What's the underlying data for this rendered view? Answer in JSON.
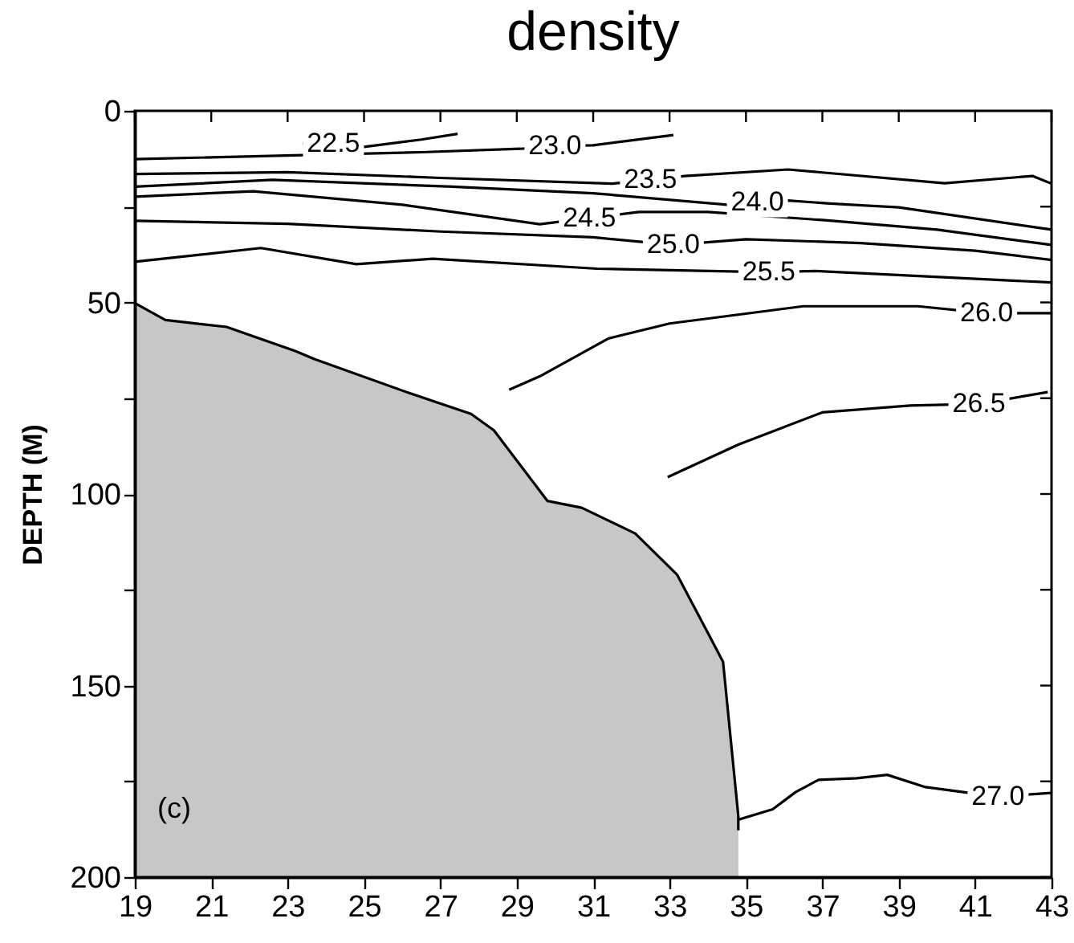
{
  "chart_data": {
    "type": "line",
    "title": "density",
    "ylabel": "DEPTH (M)",
    "xlim": [
      19,
      43
    ],
    "xticks": [
      19,
      21,
      23,
      25,
      27,
      29,
      31,
      33,
      35,
      37,
      39,
      41,
      43
    ],
    "ylim": [
      200,
      0
    ],
    "yticks": [
      0,
      {
        "value": 25,
        "label": null
      },
      50,
      {
        "value": 75,
        "label": null
      },
      100,
      {
        "value": 125,
        "label": null
      },
      150,
      {
        "value": 175,
        "label": null
      },
      200
    ],
    "grid": false,
    "marker": "none",
    "line_style": "solid",
    "series": [
      {
        "color": "#000000",
        "x": [
          23.4,
          25.0,
          26.5,
          27.45
        ],
        "values": [
          8.5,
          9.4,
          7.5,
          6.0
        ]
      },
      {
        "color": "#000000",
        "x": [
          19,
          26.5,
          29.1,
          30,
          31.0,
          33.1
        ],
        "values": [
          12.6,
          10.8,
          9.9,
          9.2,
          9.0,
          6.3
        ]
      },
      {
        "color": "#000000",
        "x": [
          19,
          23,
          27,
          31.5,
          32.5,
          33.4,
          36.1,
          40.2,
          42.5,
          43
        ],
        "values": [
          16.5,
          16,
          17.5,
          19,
          18,
          17,
          15.3,
          18.9,
          17,
          19
        ]
      },
      {
        "color": "#000000",
        "x": [
          19,
          22.6,
          27.3,
          31,
          34.5,
          36.1,
          37.2,
          39,
          43
        ],
        "values": [
          19.8,
          18,
          19.8,
          21.5,
          24.5,
          23.4,
          24.2,
          25.2,
          31
        ]
      },
      {
        "color": "#000000",
        "x": [
          19,
          22.1,
          26,
          29.6,
          32.2,
          34,
          37,
          40,
          43
        ],
        "values": [
          22.4,
          21,
          24.5,
          29.6,
          26.4,
          26.4,
          28.5,
          31,
          35
        ]
      },
      {
        "color": "#000000",
        "x": [
          19,
          23,
          27,
          31,
          33.1,
          35,
          38,
          41,
          43
        ],
        "values": [
          28.7,
          29.5,
          31.5,
          33,
          35,
          33.5,
          34.5,
          36.5,
          38.9
        ]
      },
      {
        "color": "#000000",
        "x": [
          19,
          22.3,
          24.8,
          26.8,
          31.1,
          35.6,
          36.8,
          43
        ],
        "values": [
          39.4,
          35.8,
          40,
          38.6,
          41.2,
          42.1,
          41.8,
          44.8
        ]
      },
      {
        "color": "#000000",
        "x": [
          28.8,
          29.6,
          31.4,
          33,
          36.5,
          39.5,
          41.3,
          43
        ],
        "values": [
          72.8,
          69.3,
          59.4,
          55.5,
          51,
          51,
          52.8,
          52.8
        ]
      },
      {
        "color": "#000000",
        "x": [
          32.95,
          34.8,
          37,
          39.3,
          41.1,
          42.9
        ],
        "values": [
          95.6,
          87.1,
          78.7,
          76.9,
          76.5,
          73.4
        ]
      },
      {
        "color": "#000000",
        "x": [
          34.8,
          35.7,
          36.3,
          36.9,
          37.9,
          38.7,
          39.7,
          41.6,
          43
        ],
        "values": [
          185,
          182.3,
          177.8,
          174.6,
          174.2,
          173.3,
          176.5,
          179,
          178
        ]
      },
      {
        "color": "#000000",
        "x": [
          19,
          19.8,
          21.4,
          23.2,
          23.7,
          26.2,
          27.8,
          28.4,
          29.8,
          30.7,
          32.1,
          33.2,
          34.1,
          34.4,
          34.8,
          34.8
        ],
        "values": [
          50.2,
          54.6,
          56.4,
          62.7,
          64.8,
          73.7,
          79.1,
          83.4,
          101.8,
          103.6,
          110.3,
          121.1,
          138.1,
          143.8,
          184.1,
          187.8
        ],
        "lower": [
          50.2,
          54.6,
          56.4,
          62.7,
          64.8,
          73.7,
          79.1,
          83.4,
          101.8,
          103.6,
          110.3,
          121.1,
          138.1,
          143.8,
          184.1,
          187.8
        ],
        "upper": [
          200,
          200,
          200,
          200,
          200,
          200,
          200,
          200,
          200,
          200,
          200,
          200,
          200,
          200,
          200,
          200
        ]
      }
    ],
    "annotations": [
      {
        "text": "22.5",
        "x": 24.2,
        "y": 8.6
      },
      {
        "text": "23.0",
        "x": 30,
        "y": 9.2
      },
      {
        "text": "23.5",
        "x": 32.5,
        "y": 18
      },
      {
        "text": "24.0",
        "x": 35.3,
        "y": 24
      },
      {
        "text": "24.5",
        "x": 30.9,
        "y": 28
      },
      {
        "text": "25.0",
        "x": 33.1,
        "y": 35
      },
      {
        "text": "25.5",
        "x": 35.6,
        "y": 42.1
      },
      {
        "text": "26.0",
        "x": 41.3,
        "y": 52.8
      },
      {
        "text": "26.5",
        "x": 41.1,
        "y": 76.5
      },
      {
        "text": "27.0",
        "x": 41.6,
        "y": 179
      },
      "(c)"
    ]
  }
}
